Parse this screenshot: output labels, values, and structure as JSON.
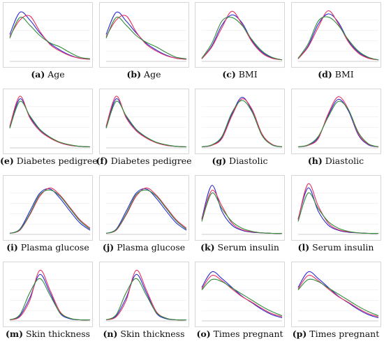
{
  "colors": {
    "series_1": "#2b2bd6",
    "series_2": "#e8315f",
    "series_3": "#2e8b3a",
    "grid": "#ececec"
  },
  "chart_data": [
    {
      "type": "line",
      "caption_letter": "(a)",
      "caption_text": "Age",
      "series": [
        {
          "values": [
            0.52,
            0.95,
            0.8,
            0.55,
            0.35,
            0.22,
            0.12,
            0.06,
            0.04
          ]
        },
        {
          "values": [
            0.48,
            0.8,
            0.88,
            0.58,
            0.33,
            0.2,
            0.11,
            0.06,
            0.04
          ]
        },
        {
          "values": [
            0.45,
            0.85,
            0.7,
            0.5,
            0.36,
            0.28,
            0.17,
            0.08,
            0.05
          ]
        }
      ]
    },
    {
      "type": "line",
      "caption_letter": "(b)",
      "caption_text": "Age",
      "series": [
        {
          "values": [
            0.52,
            0.95,
            0.78,
            0.55,
            0.35,
            0.22,
            0.12,
            0.06,
            0.04
          ]
        },
        {
          "values": [
            0.48,
            0.8,
            0.88,
            0.57,
            0.33,
            0.2,
            0.11,
            0.06,
            0.04
          ]
        },
        {
          "values": [
            0.45,
            0.85,
            0.7,
            0.5,
            0.37,
            0.28,
            0.17,
            0.08,
            0.05
          ]
        }
      ]
    },
    {
      "type": "line",
      "caption_letter": "(c)",
      "caption_text": "BMI",
      "series": [
        {
          "values": [
            0.05,
            0.3,
            0.7,
            0.9,
            0.75,
            0.4,
            0.18,
            0.07,
            0.03
          ]
        },
        {
          "values": [
            0.05,
            0.28,
            0.65,
            0.97,
            0.72,
            0.38,
            0.16,
            0.06,
            0.03
          ]
        },
        {
          "values": [
            0.06,
            0.35,
            0.78,
            0.85,
            0.7,
            0.42,
            0.2,
            0.08,
            0.03
          ]
        }
      ]
    },
    {
      "type": "line",
      "caption_letter": "(d)",
      "caption_text": "BMI",
      "series": [
        {
          "values": [
            0.05,
            0.3,
            0.72,
            0.92,
            0.76,
            0.4,
            0.18,
            0.07,
            0.03
          ]
        },
        {
          "values": [
            0.05,
            0.28,
            0.66,
            0.98,
            0.73,
            0.38,
            0.16,
            0.06,
            0.03
          ]
        },
        {
          "values": [
            0.06,
            0.34,
            0.78,
            0.86,
            0.7,
            0.42,
            0.2,
            0.08,
            0.03
          ]
        }
      ]
    },
    {
      "type": "line",
      "caption_letter": "(e)",
      "caption_text": "Diabetes pedigree",
      "series": [
        {
          "values": [
            0.4,
            0.95,
            0.6,
            0.35,
            0.2,
            0.1,
            0.05,
            0.03,
            0.02
          ]
        },
        {
          "values": [
            0.42,
            1.0,
            0.58,
            0.33,
            0.19,
            0.1,
            0.05,
            0.03,
            0.02
          ]
        },
        {
          "values": [
            0.38,
            0.9,
            0.62,
            0.36,
            0.21,
            0.11,
            0.06,
            0.03,
            0.02
          ]
        }
      ]
    },
    {
      "type": "line",
      "caption_letter": "(f)",
      "caption_text": "Diabetes pedigree",
      "series": [
        {
          "values": [
            0.4,
            0.95,
            0.6,
            0.35,
            0.2,
            0.1,
            0.05,
            0.03,
            0.02
          ]
        },
        {
          "values": [
            0.42,
            1.0,
            0.58,
            0.33,
            0.19,
            0.1,
            0.05,
            0.03,
            0.02
          ]
        },
        {
          "values": [
            0.38,
            0.9,
            0.62,
            0.36,
            0.21,
            0.11,
            0.06,
            0.03,
            0.02
          ]
        }
      ]
    },
    {
      "type": "line",
      "caption_letter": "(g)",
      "caption_text": "Diastolic",
      "series": [
        {
          "values": [
            0.02,
            0.05,
            0.2,
            0.65,
            0.98,
            0.72,
            0.25,
            0.06,
            0.02
          ]
        },
        {
          "values": [
            0.02,
            0.05,
            0.18,
            0.62,
            0.95,
            0.75,
            0.27,
            0.07,
            0.02
          ]
        },
        {
          "values": [
            0.02,
            0.06,
            0.22,
            0.68,
            0.92,
            0.7,
            0.24,
            0.06,
            0.02
          ]
        }
      ]
    },
    {
      "type": "line",
      "caption_letter": "(h)",
      "caption_text": "Diastolic",
      "series": [
        {
          "values": [
            0.02,
            0.05,
            0.2,
            0.63,
            0.94,
            0.72,
            0.25,
            0.06,
            0.02
          ]
        },
        {
          "values": [
            0.02,
            0.05,
            0.18,
            0.66,
            0.99,
            0.75,
            0.27,
            0.07,
            0.02
          ]
        },
        {
          "values": [
            0.02,
            0.06,
            0.22,
            0.6,
            0.9,
            0.74,
            0.3,
            0.08,
            0.02
          ]
        }
      ]
    },
    {
      "type": "line",
      "caption_letter": "(i)",
      "caption_text": "Plasma glucose",
      "series": [
        {
          "values": [
            0.02,
            0.1,
            0.45,
            0.8,
            0.88,
            0.7,
            0.45,
            0.22,
            0.08
          ]
        },
        {
          "values": [
            0.02,
            0.08,
            0.38,
            0.74,
            0.9,
            0.76,
            0.52,
            0.28,
            0.12
          ]
        },
        {
          "values": [
            0.02,
            0.09,
            0.4,
            0.77,
            0.86,
            0.74,
            0.5,
            0.26,
            0.1
          ]
        }
      ]
    },
    {
      "type": "line",
      "caption_letter": "(j)",
      "caption_text": "Plasma glucose",
      "series": [
        {
          "values": [
            0.02,
            0.1,
            0.45,
            0.8,
            0.88,
            0.7,
            0.45,
            0.22,
            0.08
          ]
        },
        {
          "values": [
            0.02,
            0.08,
            0.38,
            0.74,
            0.9,
            0.76,
            0.52,
            0.28,
            0.12
          ]
        },
        {
          "values": [
            0.02,
            0.09,
            0.4,
            0.77,
            0.86,
            0.74,
            0.5,
            0.26,
            0.1
          ]
        }
      ]
    },
    {
      "type": "line",
      "caption_letter": "(k)",
      "caption_text": "Serum insulin",
      "series": [
        {
          "values": [
            0.3,
            0.95,
            0.45,
            0.18,
            0.08,
            0.04,
            0.03,
            0.02,
            0.02
          ]
        },
        {
          "values": [
            0.28,
            0.85,
            0.55,
            0.22,
            0.09,
            0.05,
            0.03,
            0.02,
            0.02
          ]
        },
        {
          "values": [
            0.25,
            0.8,
            0.5,
            0.25,
            0.12,
            0.06,
            0.03,
            0.02,
            0.02
          ]
        }
      ]
    },
    {
      "type": "line",
      "caption_letter": "(l)",
      "caption_text": "Serum insulin",
      "series": [
        {
          "values": [
            0.3,
            0.9,
            0.45,
            0.18,
            0.08,
            0.04,
            0.03,
            0.02,
            0.02
          ]
        },
        {
          "values": [
            0.28,
            0.98,
            0.55,
            0.22,
            0.09,
            0.05,
            0.03,
            0.02,
            0.02
          ]
        },
        {
          "values": [
            0.25,
            0.8,
            0.5,
            0.25,
            0.12,
            0.06,
            0.03,
            0.02,
            0.02
          ]
        }
      ]
    },
    {
      "type": "line",
      "caption_letter": "(m)",
      "caption_text": "Skin thickness",
      "series": [
        {
          "values": [
            0.02,
            0.1,
            0.45,
            0.9,
            0.55,
            0.15,
            0.04,
            0.02,
            0.02
          ]
        },
        {
          "values": [
            0.02,
            0.08,
            0.4,
            0.98,
            0.6,
            0.18,
            0.05,
            0.02,
            0.02
          ]
        },
        {
          "values": [
            0.02,
            0.12,
            0.55,
            0.82,
            0.5,
            0.16,
            0.05,
            0.02,
            0.02
          ]
        }
      ]
    },
    {
      "type": "line",
      "caption_letter": "(n)",
      "caption_text": "Skin thickness",
      "series": [
        {
          "values": [
            0.02,
            0.1,
            0.45,
            0.9,
            0.55,
            0.15,
            0.04,
            0.02,
            0.02
          ]
        },
        {
          "values": [
            0.02,
            0.08,
            0.4,
            0.98,
            0.6,
            0.18,
            0.05,
            0.02,
            0.02
          ]
        },
        {
          "values": [
            0.02,
            0.12,
            0.55,
            0.82,
            0.5,
            0.16,
            0.05,
            0.02,
            0.02
          ]
        }
      ]
    },
    {
      "type": "line",
      "caption_letter": "(o)",
      "caption_text": "Times pregnant",
      "series": [
        {
          "values": [
            0.65,
            0.95,
            0.82,
            0.65,
            0.48,
            0.35,
            0.22,
            0.12,
            0.06
          ]
        },
        {
          "values": [
            0.62,
            0.88,
            0.78,
            0.62,
            0.47,
            0.36,
            0.24,
            0.14,
            0.08
          ]
        },
        {
          "values": [
            0.6,
            0.8,
            0.76,
            0.64,
            0.52,
            0.4,
            0.28,
            0.18,
            0.1
          ]
        }
      ]
    },
    {
      "type": "line",
      "caption_letter": "(p)",
      "caption_text": "Times pregnant",
      "series": [
        {
          "values": [
            0.65,
            0.95,
            0.82,
            0.65,
            0.48,
            0.35,
            0.22,
            0.12,
            0.06
          ]
        },
        {
          "values": [
            0.62,
            0.88,
            0.78,
            0.62,
            0.47,
            0.36,
            0.24,
            0.14,
            0.08
          ]
        },
        {
          "values": [
            0.6,
            0.8,
            0.76,
            0.64,
            0.52,
            0.4,
            0.28,
            0.18,
            0.1
          ]
        }
      ]
    }
  ]
}
